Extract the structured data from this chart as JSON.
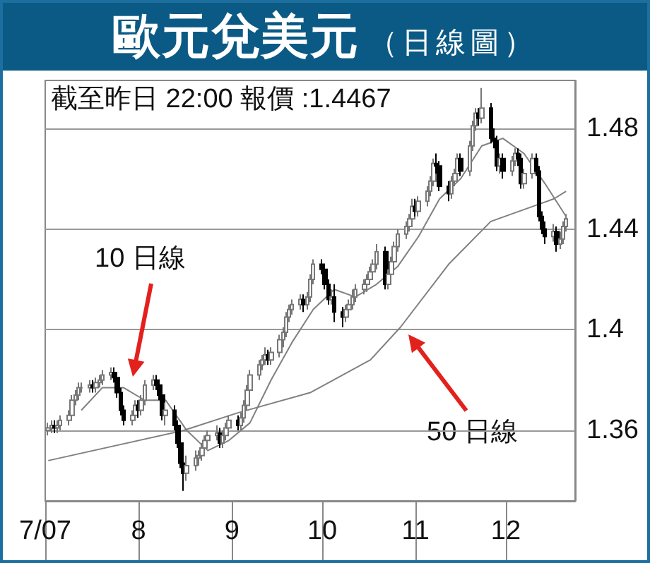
{
  "chart_data": {
    "type": "candlestick",
    "title": "歐元兌美元",
    "subtitle": "（日線圖）",
    "annotations": [
      "截至昨日 22:00 報價 :1.4467",
      "10 日線",
      "50 日線"
    ],
    "x": [
      "2007-07-02",
      "2007-07-03",
      "2007-07-04",
      "2007-07-05",
      "2007-07-06",
      "2007-07-09",
      "2007-07-10",
      "2007-07-11",
      "2007-07-12",
      "2007-07-13",
      "2007-07-16",
      "2007-07-17",
      "2007-07-18",
      "2007-07-19",
      "2007-07-20",
      "2007-07-23",
      "2007-07-24",
      "2007-07-25",
      "2007-07-26",
      "2007-07-27",
      "2007-07-30",
      "2007-07-31",
      "2007-08-01",
      "2007-08-02",
      "2007-08-03",
      "2007-08-06",
      "2007-08-07",
      "2007-08-08",
      "2007-08-09",
      "2007-08-10",
      "2007-08-13",
      "2007-08-14",
      "2007-08-15",
      "2007-08-16",
      "2007-08-17",
      "2007-08-20",
      "2007-08-21",
      "2007-08-22",
      "2007-08-23",
      "2007-08-24",
      "2007-08-27",
      "2007-08-28",
      "2007-08-29",
      "2007-08-30",
      "2007-08-31",
      "2007-09-03",
      "2007-09-04",
      "2007-09-05",
      "2007-09-06",
      "2007-09-07",
      "2007-09-10",
      "2007-09-11",
      "2007-09-12",
      "2007-09-13",
      "2007-09-14",
      "2007-09-17",
      "2007-09-18",
      "2007-09-19",
      "2007-09-20",
      "2007-09-21",
      "2007-09-24",
      "2007-09-25",
      "2007-09-26",
      "2007-09-27",
      "2007-09-28",
      "2007-10-01",
      "2007-10-02",
      "2007-10-03",
      "2007-10-04",
      "2007-10-05",
      "2007-10-08",
      "2007-10-09",
      "2007-10-10",
      "2007-10-11",
      "2007-10-12",
      "2007-10-15",
      "2007-10-16",
      "2007-10-17",
      "2007-10-18",
      "2007-10-19",
      "2007-10-22",
      "2007-10-23",
      "2007-10-24",
      "2007-10-25",
      "2007-10-26",
      "2007-10-29",
      "2007-10-30",
      "2007-10-31",
      "2007-11-01",
      "2007-11-02",
      "2007-11-05",
      "2007-11-06",
      "2007-11-07",
      "2007-11-08",
      "2007-11-09",
      "2007-11-12",
      "2007-11-13",
      "2007-11-14",
      "2007-11-15",
      "2007-11-16",
      "2007-11-19",
      "2007-11-20",
      "2007-11-21",
      "2007-11-22",
      "2007-11-23",
      "2007-11-26",
      "2007-11-27",
      "2007-11-28",
      "2007-11-29",
      "2007-11-30",
      "2007-12-03",
      "2007-12-04",
      "2007-12-05",
      "2007-12-06",
      "2007-12-07",
      "2007-12-10",
      "2007-12-11",
      "2007-12-12",
      "2007-12-13",
      "2007-12-14",
      "2007-12-17",
      "2007-12-18",
      "2007-12-19",
      "2007-12-20",
      "2007-12-21"
    ],
    "ohlc": [
      [
        1.36,
        1.363,
        1.358,
        1.361
      ],
      [
        1.361,
        1.364,
        1.359,
        1.362
      ],
      [
        1.362,
        1.364,
        1.359,
        1.361
      ],
      [
        1.361,
        1.364,
        1.359,
        1.362
      ],
      [
        1.362,
        1.366,
        1.36,
        1.364
      ],
      [
        1.364,
        1.368,
        1.362,
        1.366
      ],
      [
        1.366,
        1.374,
        1.364,
        1.372
      ],
      [
        1.372,
        1.376,
        1.37,
        1.374
      ],
      [
        1.374,
        1.379,
        1.372,
        1.377
      ],
      [
        1.377,
        1.379,
        1.375,
        1.377
      ],
      [
        1.377,
        1.38,
        1.375,
        1.378
      ],
      [
        1.378,
        1.38,
        1.375,
        1.377
      ],
      [
        1.377,
        1.381,
        1.375,
        1.379
      ],
      [
        1.379,
        1.382,
        1.377,
        1.38
      ],
      [
        1.38,
        1.384,
        1.378,
        1.382
      ],
      [
        1.382,
        1.385,
        1.38,
        1.383
      ],
      [
        1.383,
        1.385,
        1.379,
        1.381
      ],
      [
        1.381,
        1.383,
        1.373,
        1.375
      ],
      [
        1.375,
        1.377,
        1.366,
        1.368
      ],
      [
        1.368,
        1.37,
        1.362,
        1.364
      ],
      [
        1.364,
        1.368,
        1.362,
        1.366
      ],
      [
        1.366,
        1.372,
        1.364,
        1.37
      ],
      [
        1.37,
        1.372,
        1.365,
        1.368
      ],
      [
        1.368,
        1.374,
        1.366,
        1.372
      ],
      [
        1.372,
        1.38,
        1.37,
        1.378
      ],
      [
        1.378,
        1.382,
        1.376,
        1.38
      ],
      [
        1.38,
        1.382,
        1.376,
        1.378
      ],
      [
        1.378,
        1.38,
        1.372,
        1.374
      ],
      [
        1.374,
        1.376,
        1.364,
        1.366
      ],
      [
        1.366,
        1.371,
        1.362,
        1.368
      ],
      [
        1.368,
        1.37,
        1.36,
        1.362
      ],
      [
        1.362,
        1.364,
        1.353,
        1.355
      ],
      [
        1.355,
        1.357,
        1.345,
        1.347
      ],
      [
        1.347,
        1.35,
        1.336,
        1.343
      ],
      [
        1.343,
        1.35,
        1.34,
        1.346
      ],
      [
        1.346,
        1.352,
        1.344,
        1.349
      ],
      [
        1.349,
        1.352,
        1.346,
        1.35
      ],
      [
        1.35,
        1.355,
        1.348,
        1.353
      ],
      [
        1.353,
        1.358,
        1.351,
        1.356
      ],
      [
        1.356,
        1.36,
        1.354,
        1.358
      ],
      [
        1.358,
        1.362,
        1.356,
        1.359
      ],
      [
        1.359,
        1.361,
        1.353,
        1.355
      ],
      [
        1.355,
        1.36,
        1.353,
        1.358
      ],
      [
        1.358,
        1.363,
        1.356,
        1.361
      ],
      [
        1.361,
        1.366,
        1.359,
        1.364
      ],
      [
        1.364,
        1.366,
        1.36,
        1.362
      ],
      [
        1.362,
        1.367,
        1.36,
        1.365
      ],
      [
        1.365,
        1.372,
        1.363,
        1.37
      ],
      [
        1.37,
        1.378,
        1.368,
        1.376
      ],
      [
        1.376,
        1.384,
        1.374,
        1.382
      ],
      [
        1.382,
        1.388,
        1.38,
        1.386
      ],
      [
        1.386,
        1.39,
        1.384,
        1.388
      ],
      [
        1.388,
        1.393,
        1.386,
        1.39
      ],
      [
        1.39,
        1.392,
        1.386,
        1.388
      ],
      [
        1.388,
        1.393,
        1.386,
        1.391
      ],
      [
        1.391,
        1.398,
        1.389,
        1.396
      ],
      [
        1.396,
        1.401,
        1.393,
        1.399
      ],
      [
        1.399,
        1.407,
        1.397,
        1.405
      ],
      [
        1.405,
        1.41,
        1.403,
        1.408
      ],
      [
        1.408,
        1.412,
        1.406,
        1.41
      ],
      [
        1.41,
        1.414,
        1.408,
        1.412
      ],
      [
        1.412,
        1.414,
        1.407,
        1.41
      ],
      [
        1.41,
        1.415,
        1.408,
        1.413
      ],
      [
        1.413,
        1.422,
        1.411,
        1.42
      ],
      [
        1.42,
        1.428,
        1.418,
        1.426
      ],
      [
        1.426,
        1.428,
        1.422,
        1.424
      ],
      [
        1.424,
        1.426,
        1.416,
        1.418
      ],
      [
        1.418,
        1.42,
        1.41,
        1.412
      ],
      [
        1.412,
        1.416,
        1.41,
        1.413
      ],
      [
        1.413,
        1.418,
        1.403,
        1.407
      ],
      [
        1.407,
        1.409,
        1.401,
        1.405
      ],
      [
        1.405,
        1.41,
        1.403,
        1.408
      ],
      [
        1.408,
        1.412,
        1.406,
        1.41
      ],
      [
        1.41,
        1.416,
        1.408,
        1.413
      ],
      [
        1.413,
        1.418,
        1.411,
        1.416
      ],
      [
        1.416,
        1.42,
        1.414,
        1.418
      ],
      [
        1.418,
        1.422,
        1.415,
        1.42
      ],
      [
        1.42,
        1.425,
        1.418,
        1.423
      ],
      [
        1.423,
        1.428,
        1.421,
        1.426
      ],
      [
        1.426,
        1.434,
        1.424,
        1.431
      ],
      [
        1.431,
        1.433,
        1.416,
        1.418
      ],
      [
        1.418,
        1.424,
        1.416,
        1.422
      ],
      [
        1.422,
        1.429,
        1.42,
        1.427
      ],
      [
        1.427,
        1.435,
        1.425,
        1.433
      ],
      [
        1.433,
        1.44,
        1.431,
        1.438
      ],
      [
        1.438,
        1.443,
        1.436,
        1.441
      ],
      [
        1.441,
        1.446,
        1.439,
        1.444
      ],
      [
        1.444,
        1.452,
        1.442,
        1.449
      ],
      [
        1.449,
        1.452,
        1.445,
        1.447
      ],
      [
        1.447,
        1.453,
        1.445,
        1.451
      ],
      [
        1.451,
        1.457,
        1.449,
        1.455
      ],
      [
        1.455,
        1.461,
        1.453,
        1.459
      ],
      [
        1.459,
        1.468,
        1.457,
        1.466
      ],
      [
        1.466,
        1.47,
        1.462,
        1.465
      ],
      [
        1.465,
        1.467,
        1.455,
        1.457
      ],
      [
        1.457,
        1.459,
        1.451,
        1.454
      ],
      [
        1.454,
        1.461,
        1.452,
        1.459
      ],
      [
        1.459,
        1.464,
        1.457,
        1.462
      ],
      [
        1.462,
        1.47,
        1.46,
        1.468
      ],
      [
        1.468,
        1.47,
        1.461,
        1.463
      ],
      [
        1.463,
        1.475,
        1.461,
        1.473
      ],
      [
        1.473,
        1.483,
        1.471,
        1.481
      ],
      [
        1.481,
        1.488,
        1.479,
        1.486
      ],
      [
        1.486,
        1.488,
        1.481,
        1.484
      ],
      [
        1.484,
        1.496,
        1.482,
        1.488
      ],
      [
        1.488,
        1.49,
        1.474,
        1.476
      ],
      [
        1.476,
        1.48,
        1.472,
        1.475
      ],
      [
        1.475,
        1.477,
        1.463,
        1.465
      ],
      [
        1.465,
        1.47,
        1.462,
        1.468
      ],
      [
        1.468,
        1.47,
        1.46,
        1.463
      ],
      [
        1.463,
        1.469,
        1.461,
        1.467
      ],
      [
        1.467,
        1.472,
        1.465,
        1.47
      ],
      [
        1.47,
        1.472,
        1.465,
        1.468
      ],
      [
        1.468,
        1.47,
        1.456,
        1.458
      ],
      [
        1.458,
        1.464,
        1.456,
        1.462
      ],
      [
        1.462,
        1.47,
        1.46,
        1.468
      ],
      [
        1.468,
        1.47,
        1.461,
        1.463
      ],
      [
        1.463,
        1.465,
        1.443,
        1.445
      ],
      [
        1.445,
        1.447,
        1.438,
        1.44
      ],
      [
        1.44,
        1.443,
        1.434,
        1.437
      ],
      [
        1.437,
        1.442,
        1.435,
        1.439
      ],
      [
        1.439,
        1.441,
        1.431,
        1.434
      ],
      [
        1.434,
        1.439,
        1.432,
        1.436
      ],
      [
        1.436,
        1.443,
        1.434,
        1.441
      ],
      [
        1.441,
        1.446,
        1.439,
        1.444
      ]
    ],
    "series": [
      {
        "type": "line",
        "color": "#808080",
        "x": [
          "2007-07-13",
          "2007-07-20",
          "2007-07-27",
          "2007-08-03",
          "2007-08-10",
          "2007-08-17",
          "2007-08-24",
          "2007-08-31",
          "2007-09-07",
          "2007-09-14",
          "2007-09-21",
          "2007-09-28",
          "2007-10-05",
          "2007-10-12",
          "2007-10-19",
          "2007-10-26",
          "2007-11-02",
          "2007-11-09",
          "2007-11-16",
          "2007-11-23",
          "2007-11-30",
          "2007-12-07",
          "2007-12-14",
          "2007-12-21"
        ],
        "values": [
          1.368,
          1.377,
          1.377,
          1.372,
          1.372,
          1.36,
          1.352,
          1.356,
          1.363,
          1.38,
          1.395,
          1.408,
          1.416,
          1.413,
          1.418,
          1.425,
          1.437,
          1.452,
          1.46,
          1.473,
          1.476,
          1.47,
          1.458,
          1.445
        ]
      },
      {
        "type": "line",
        "color": "#808080",
        "x": [
          "2007-07-02",
          "2007-08-16",
          "2007-09-03",
          "2007-09-27",
          "2007-10-17",
          "2007-10-27",
          "2007-11-12",
          "2007-11-26",
          "2007-12-17",
          "2007-12-21"
        ],
        "values": [
          1.348,
          1.36,
          1.367,
          1.375,
          1.388,
          1.401,
          1.426,
          1.443,
          1.452,
          1.455
        ]
      }
    ],
    "xlim": [
      "2007-07-01",
      "2007-12-24"
    ],
    "xticks": [
      {
        "value": "2007-07-01",
        "label": "7/07"
      },
      {
        "value": "2007-08-01",
        "label": "8"
      },
      {
        "value": "2007-09-01",
        "label": "9"
      },
      {
        "value": "2007-10-01",
        "label": "10"
      },
      {
        "value": "2007-11-01",
        "label": "11"
      },
      {
        "value": "2007-12-01",
        "label": "12"
      }
    ],
    "ylim": [
      1.332,
      1.499
    ],
    "yticks": [
      1.36,
      1.4,
      1.44,
      1.48
    ],
    "grid": "y"
  }
}
